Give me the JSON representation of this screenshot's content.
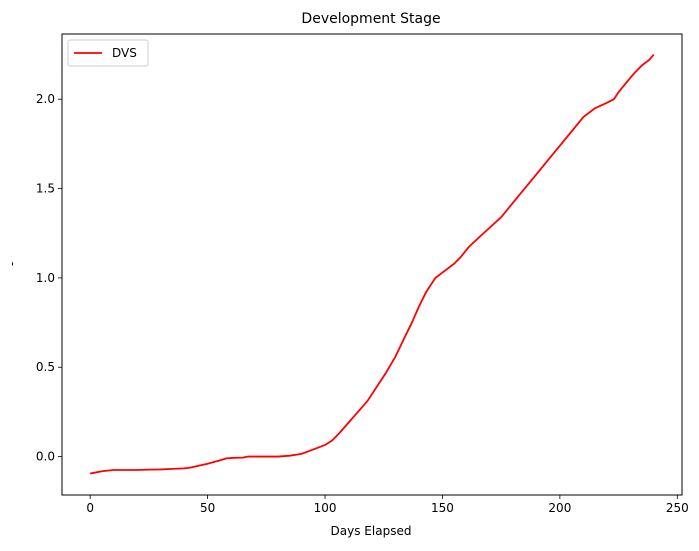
{
  "chart_data": {
    "type": "line",
    "title": "Development Stage",
    "xlabel": "Days Elapsed",
    "ylabel": "-",
    "xlim": [
      -12,
      252
    ],
    "ylim": [
      -0.215,
      2.365
    ],
    "xticks": [
      0,
      50,
      100,
      150,
      200,
      250
    ],
    "xtick_labels": [
      "0",
      "50",
      "100",
      "150",
      "200",
      "250"
    ],
    "yticks": [
      0.0,
      0.5,
      1.0,
      1.5,
      2.0
    ],
    "ytick_labels": [
      "0.0",
      "0.5",
      "1.0",
      "1.5",
      "2.0"
    ],
    "grid": false,
    "legend_position": "upper-left",
    "series": [
      {
        "name": "DVS",
        "color": "#ff0000",
        "x": [
          0,
          5,
          10,
          15,
          20,
          25,
          30,
          35,
          40,
          42,
          45,
          50,
          55,
          58,
          61,
          65,
          67,
          70,
          75,
          80,
          85,
          90,
          93,
          96,
          100,
          103,
          106,
          110,
          114,
          118,
          122,
          126,
          130,
          134,
          137,
          140,
          143,
          145,
          147,
          150,
          155,
          158,
          161,
          165,
          170,
          175,
          180,
          185,
          190,
          195,
          200,
          205,
          210,
          215,
          220,
          223,
          225,
          230,
          232,
          235,
          238,
          240
        ],
        "y": [
          -0.095,
          -0.082,
          -0.075,
          -0.075,
          -0.075,
          -0.073,
          -0.072,
          -0.069,
          -0.066,
          -0.063,
          -0.055,
          -0.04,
          -0.022,
          -0.01,
          -0.007,
          -0.006,
          0.0,
          0.0,
          0.0,
          0.0,
          0.005,
          0.015,
          0.03,
          0.045,
          0.065,
          0.09,
          0.13,
          0.19,
          0.25,
          0.31,
          0.39,
          0.47,
          0.56,
          0.67,
          0.75,
          0.84,
          0.92,
          0.96,
          1.0,
          1.03,
          1.08,
          1.12,
          1.17,
          1.22,
          1.28,
          1.34,
          1.42,
          1.5,
          1.58,
          1.66,
          1.74,
          1.82,
          1.9,
          1.95,
          1.98,
          2.0,
          2.04,
          2.12,
          2.15,
          2.19,
          2.22,
          2.25
        ]
      }
    ]
  }
}
